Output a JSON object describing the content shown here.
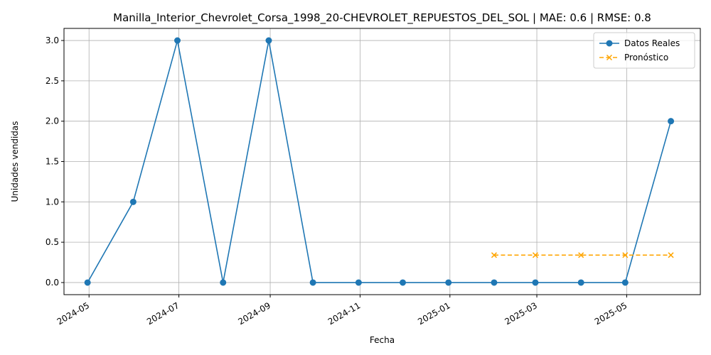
{
  "chart_data": {
    "type": "line",
    "title": "Manilla_Interior_Chevrolet_Corsa_1998_20-CHEVROLET_REPUESTOS_DEL_SOL | MAE: 0.6 | RMSE: 0.8",
    "xlabel": "Fecha",
    "ylabel": "Unidades vendidas",
    "x_ticks": [
      "2024-05",
      "2024-07",
      "2024-09",
      "2024-11",
      "2025-01",
      "2025-03",
      "2025-05"
    ],
    "y_ticks": [
      "0.0",
      "0.5",
      "1.0",
      "1.5",
      "2.0",
      "2.5",
      "3.0"
    ],
    "ylim": [
      -0.15,
      3.15
    ],
    "xlim": [
      "2024-04-14",
      "2025-06-20"
    ],
    "grid": true,
    "legend_position": "top-right",
    "series": [
      {
        "name": "Datos Reales",
        "color": "#1f77b4",
        "marker": "circle",
        "linestyle": "solid",
        "x": [
          "2024-04-30",
          "2024-05-31",
          "2024-06-30",
          "2024-07-31",
          "2024-08-31",
          "2024-09-30",
          "2024-10-31",
          "2024-11-30",
          "2024-12-31",
          "2025-01-31",
          "2025-02-28",
          "2025-03-31",
          "2025-04-30",
          "2025-05-31"
        ],
        "values": [
          0,
          1,
          3,
          0,
          3,
          0,
          0,
          0,
          0,
          0,
          0,
          0,
          0,
          2
        ]
      },
      {
        "name": "Pronóstico",
        "color": "#ffa500",
        "marker": "x",
        "linestyle": "dashed",
        "x": [
          "2025-01-31",
          "2025-02-28",
          "2025-03-31",
          "2025-04-30",
          "2025-05-31"
        ],
        "values": [
          0.34,
          0.34,
          0.34,
          0.34,
          0.34
        ]
      }
    ]
  }
}
